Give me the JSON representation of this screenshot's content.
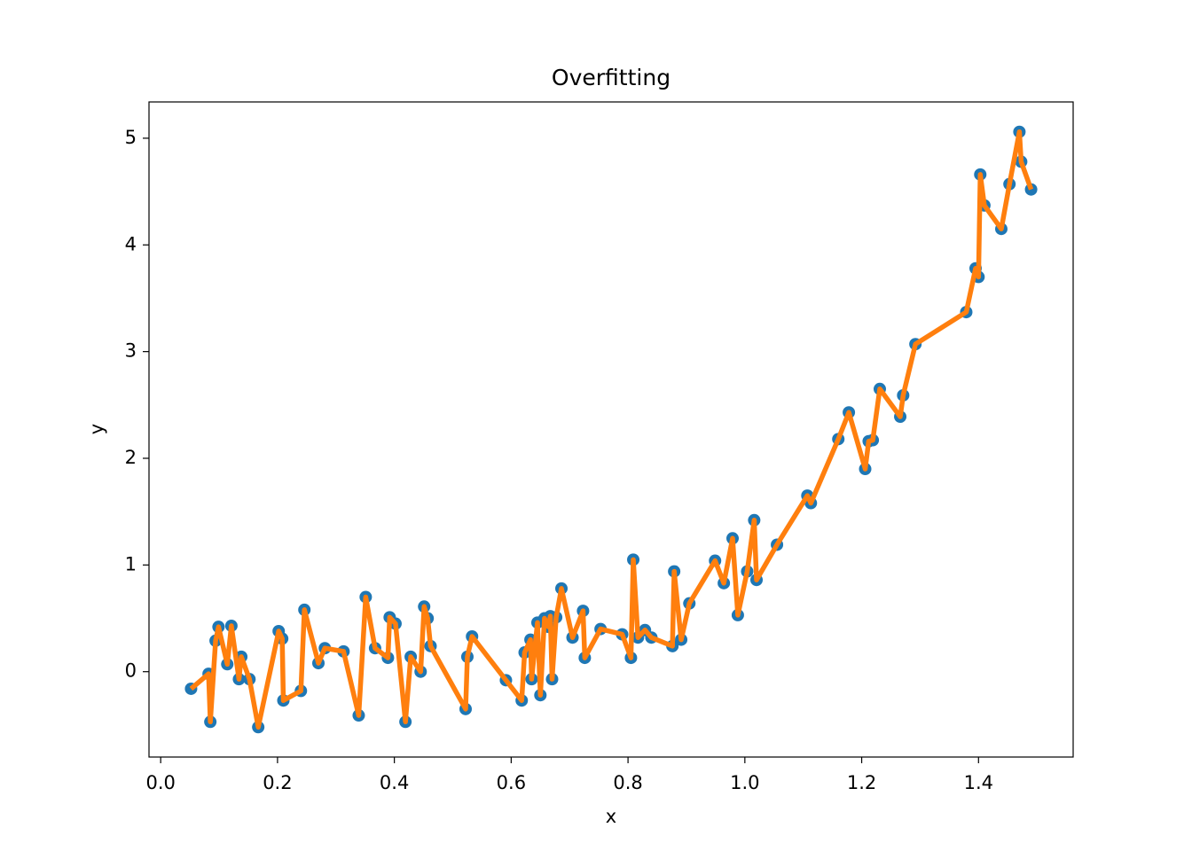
{
  "chart_data": {
    "type": "line",
    "title": "Overfitting",
    "xlabel": "x",
    "ylabel": "y",
    "x": [
      0.052,
      0.082,
      0.085,
      0.094,
      0.099,
      0.114,
      0.121,
      0.134,
      0.138,
      0.152,
      0.167,
      0.202,
      0.208,
      0.21,
      0.24,
      0.246,
      0.27,
      0.281,
      0.313,
      0.339,
      0.351,
      0.367,
      0.389,
      0.392,
      0.402,
      0.419,
      0.428,
      0.445,
      0.451,
      0.457,
      0.462,
      0.522,
      0.525,
      0.533,
      0.591,
      0.618,
      0.623,
      0.633,
      0.635,
      0.645,
      0.65,
      0.657,
      0.664,
      0.667,
      0.67,
      0.677,
      0.686,
      0.705,
      0.723,
      0.726,
      0.753,
      0.79,
      0.805,
      0.809,
      0.817,
      0.829,
      0.84,
      0.876,
      0.879,
      0.891,
      0.905,
      0.949,
      0.964,
      0.979,
      0.988,
      1.004,
      1.016,
      1.02,
      1.055,
      1.107,
      1.113,
      1.16,
      1.178,
      1.206,
      1.212,
      1.219,
      1.231,
      1.266,
      1.271,
      1.292,
      1.379,
      1.395,
      1.4,
      1.403,
      1.41,
      1.439,
      1.453,
      1.47,
      1.473,
      1.49
    ],
    "values": [
      -0.16,
      -0.02,
      -0.47,
      0.29,
      0.42,
      0.07,
      0.43,
      -0.07,
      0.14,
      -0.07,
      -0.52,
      0.38,
      0.31,
      -0.27,
      -0.18,
      0.58,
      0.08,
      0.22,
      0.19,
      -0.41,
      0.7,
      0.22,
      0.13,
      0.51,
      0.45,
      -0.47,
      0.14,
      0.0,
      0.61,
      0.5,
      0.24,
      -0.35,
      0.14,
      0.33,
      -0.08,
      -0.27,
      0.18,
      0.3,
      -0.07,
      0.46,
      -0.22,
      0.5,
      0.42,
      0.52,
      -0.07,
      0.51,
      0.78,
      0.32,
      0.57,
      0.13,
      0.4,
      0.35,
      0.13,
      1.05,
      0.32,
      0.39,
      0.32,
      0.24,
      0.94,
      0.3,
      0.64,
      1.04,
      0.83,
      1.25,
      0.53,
      0.94,
      1.42,
      0.86,
      1.19,
      1.65,
      1.58,
      2.18,
      2.43,
      1.9,
      2.16,
      2.17,
      2.65,
      2.39,
      2.59,
      3.07,
      3.37,
      3.78,
      3.7,
      4.66,
      4.37,
      4.15,
      4.57,
      5.06,
      4.78,
      4.52
    ],
    "marker_color": "#1f77b4",
    "line_color": "#ff7f0e",
    "xlim": [
      -0.02,
      1.562
    ],
    "ylim": [
      -0.8,
      5.34
    ],
    "xticks": [
      {
        "value": 0,
        "label": "0.0"
      },
      {
        "value": 0.2,
        "label": "0.2"
      },
      {
        "value": 0.4,
        "label": "0.4"
      },
      {
        "value": 0.6,
        "label": "0.6"
      },
      {
        "value": 0.8,
        "label": "0.8"
      },
      {
        "value": 1,
        "label": "1.0"
      },
      {
        "value": 1.2,
        "label": "1.2"
      },
      {
        "value": 1.4,
        "label": "1.4"
      }
    ],
    "yticks": [
      0,
      1,
      2,
      3,
      4,
      5
    ],
    "grid": false
  }
}
